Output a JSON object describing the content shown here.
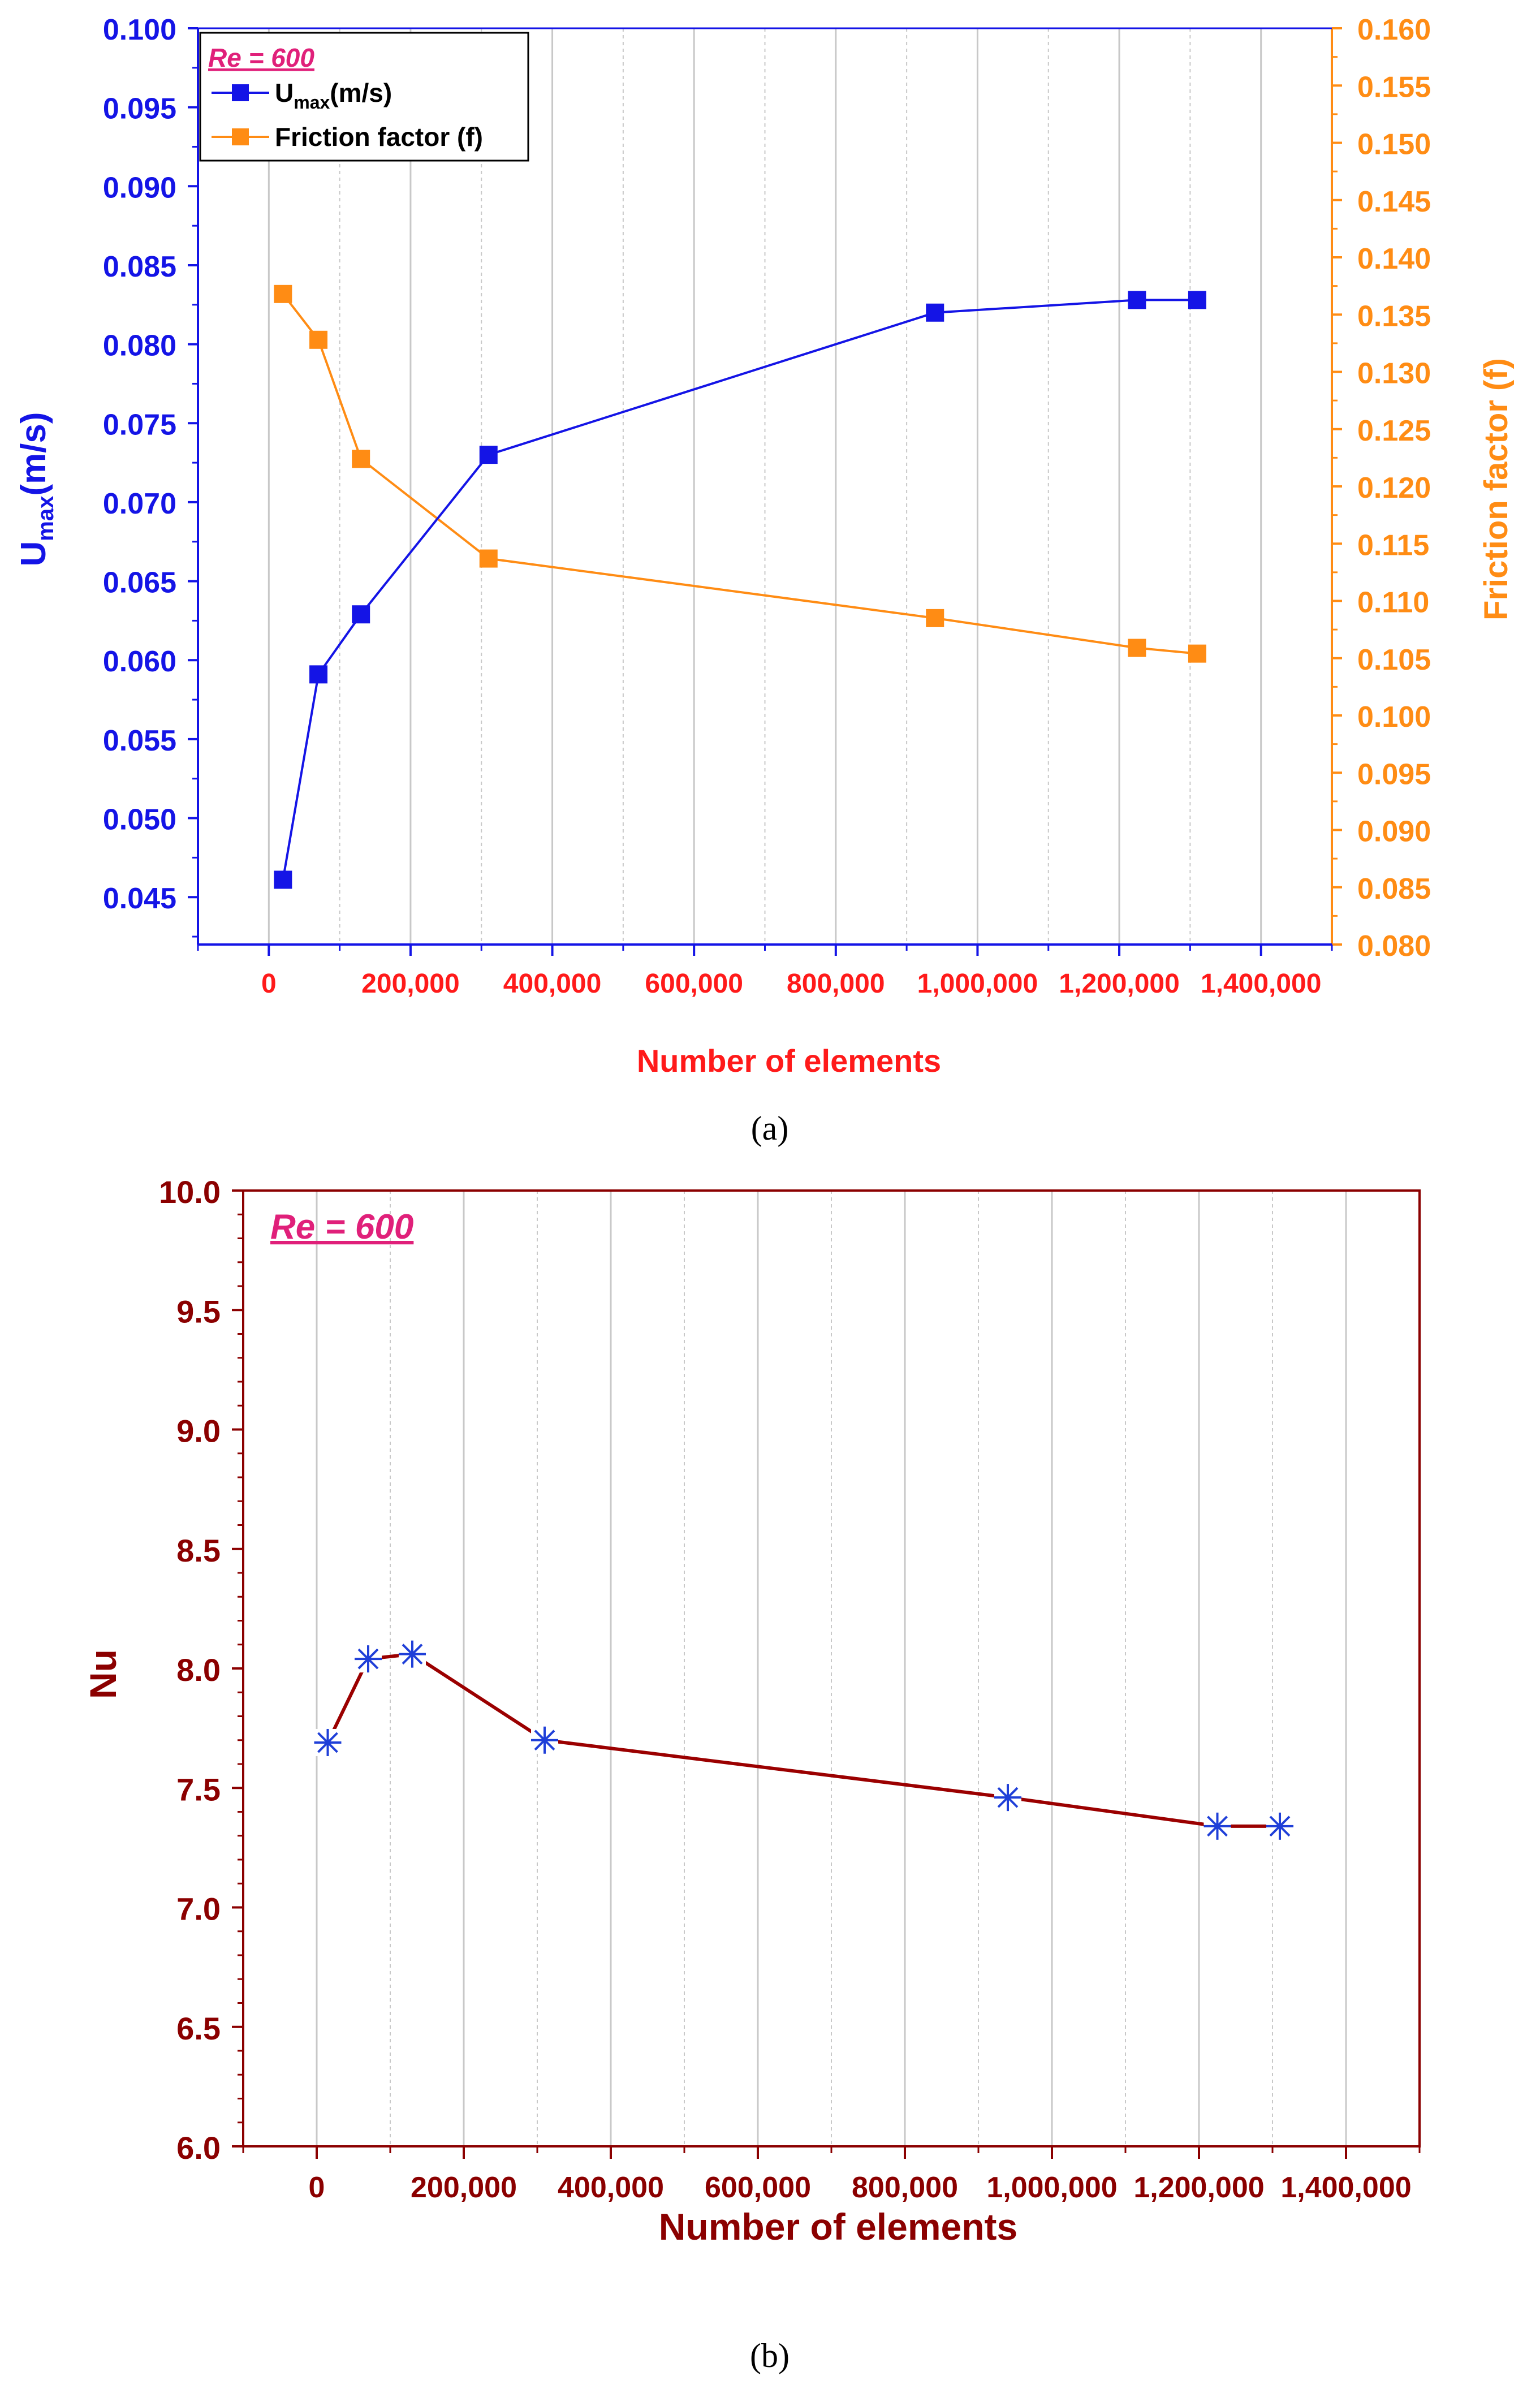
{
  "colors": {
    "umax": "#1414e6",
    "friction": "#ff8c14",
    "x_tick_a": "#ff1a1a",
    "x_title_a": "#ff1a1a",
    "nu_axis": "#8b0000",
    "nu_line": "#9b0000",
    "nu_marker": "#1f3fd8",
    "legend_accent": "#e0207a",
    "grid": "#c8c8c8"
  },
  "chart_data": [
    {
      "type": "line",
      "panel_label": "(a)",
      "annotation": "Re = 600",
      "x": [
        20000,
        70000,
        130000,
        310000,
        940000,
        1225000,
        1310000
      ],
      "xlabel": "Number of elements",
      "xlim": [
        -100000,
        1500000
      ],
      "x_ticks": [
        0,
        200000,
        400000,
        600000,
        800000,
        1000000,
        1200000,
        1400000
      ],
      "x_tick_labels": [
        "0",
        "200,000",
        "400,000",
        "600,000",
        "800,000",
        "1,000,000",
        "1,200,000",
        "1,400,000"
      ],
      "ylabel_left_main": "U",
      "ylabel_left_sub": "max",
      "ylabel_left_unit": "(m/s)",
      "ylim_left": [
        0.042,
        0.1
      ],
      "y_ticks_left": [
        "0.045",
        "0.050",
        "0.055",
        "0.060",
        "0.065",
        "0.070",
        "0.075",
        "0.080",
        "0.085",
        "0.090",
        "0.095",
        "0.100"
      ],
      "ylabel_right": "Friction factor (f)",
      "ylim_right": [
        0.08,
        0.16
      ],
      "y_ticks_right": [
        "0.080",
        "0.085",
        "0.090",
        "0.095",
        "0.100",
        "0.105",
        "0.110",
        "0.115",
        "0.120",
        "0.125",
        "0.130",
        "0.135",
        "0.140",
        "0.145",
        "0.150",
        "0.155",
        "0.160"
      ],
      "grid": true,
      "legend_position": "top-left",
      "series": [
        {
          "name_main": "U",
          "name_sub": "max",
          "name_unit": "(m/s)",
          "axis": "left",
          "marker": "square",
          "values": [
            0.0461,
            0.0591,
            0.0629,
            0.073,
            0.082,
            0.0828,
            0.0828
          ]
        },
        {
          "name": "Friction factor (f)",
          "axis": "right",
          "marker": "square",
          "values": [
            0.1368,
            0.1328,
            0.1224,
            0.1137,
            0.1085,
            0.1059,
            0.1054
          ]
        }
      ]
    },
    {
      "type": "line",
      "panel_label": "(b)",
      "annotation": "Re = 600",
      "x": [
        15000,
        70000,
        130000,
        310000,
        940000,
        1225000,
        1310000
      ],
      "xlabel": "Number of elements",
      "xlim": [
        -100000,
        1500000
      ],
      "x_ticks": [
        0,
        200000,
        400000,
        600000,
        800000,
        1000000,
        1200000,
        1400000
      ],
      "x_tick_labels": [
        "0",
        "200,000",
        "400,000",
        "600,000",
        "800,000",
        "1,000,000",
        "1,200,000",
        "1,400,000"
      ],
      "ylabel": "Nu",
      "ylim": [
        6.0,
        10.0
      ],
      "y_ticks": [
        "6.0",
        "6.5",
        "7.0",
        "7.5",
        "8.0",
        "8.5",
        "9.0",
        "9.5",
        "10.0"
      ],
      "grid": true,
      "series": [
        {
          "axis": "left",
          "marker": "asterisk",
          "values": [
            7.69,
            8.04,
            8.06,
            7.7,
            7.46,
            7.34,
            7.34
          ]
        }
      ]
    }
  ]
}
